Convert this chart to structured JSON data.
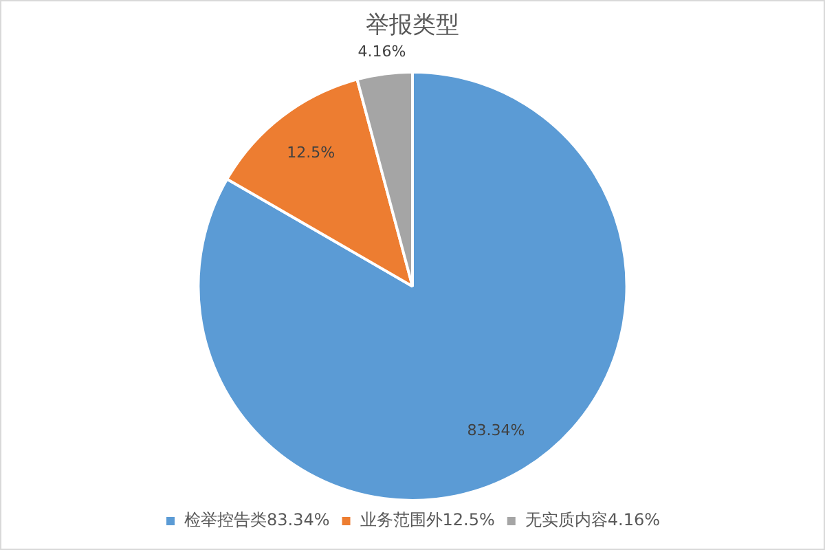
{
  "chart_data": {
    "type": "pie",
    "title": "举报类型",
    "categories": [
      "检举控告类83.34%",
      "业务范围外12.5%",
      "无实质内容4.16%"
    ],
    "values": [
      83.34,
      12.5,
      4.16
    ],
    "colors": [
      "#5b9bd5",
      "#ed7d31",
      "#a5a5a5"
    ],
    "value_labels": [
      "83.34%",
      "12.5%",
      "4.16%"
    ],
    "legend": "bottom"
  }
}
